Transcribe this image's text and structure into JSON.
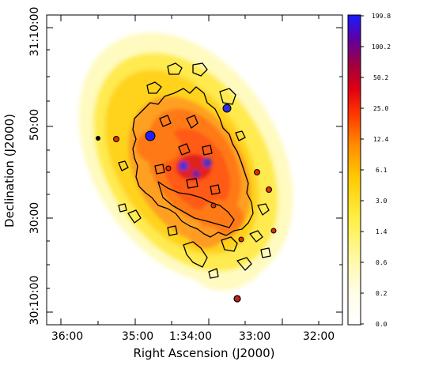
{
  "figure": {
    "xlabel": "Right Ascension (J2000)",
    "ylabel": "Declination (J2000)",
    "x_ticks": [
      "36:00",
      "35:00",
      "1:34:00",
      "33:00",
      "32:00"
    ],
    "y_ticks": [
      "31:10:00",
      "50:00",
      "30:00",
      "30:10:00"
    ],
    "colorbar_ticks": [
      "199.8",
      "100.2",
      "50.2",
      "25.0",
      "12.4",
      "6.1",
      "3.0",
      "1.4",
      "0.6",
      "0.2",
      "0.0"
    ],
    "colors": {
      "frame": "#000000",
      "background": "#ffffff",
      "low": "#fff8b0",
      "mid": "#ffd000",
      "high": "#ff3000",
      "peak": "#2020ff"
    }
  }
}
